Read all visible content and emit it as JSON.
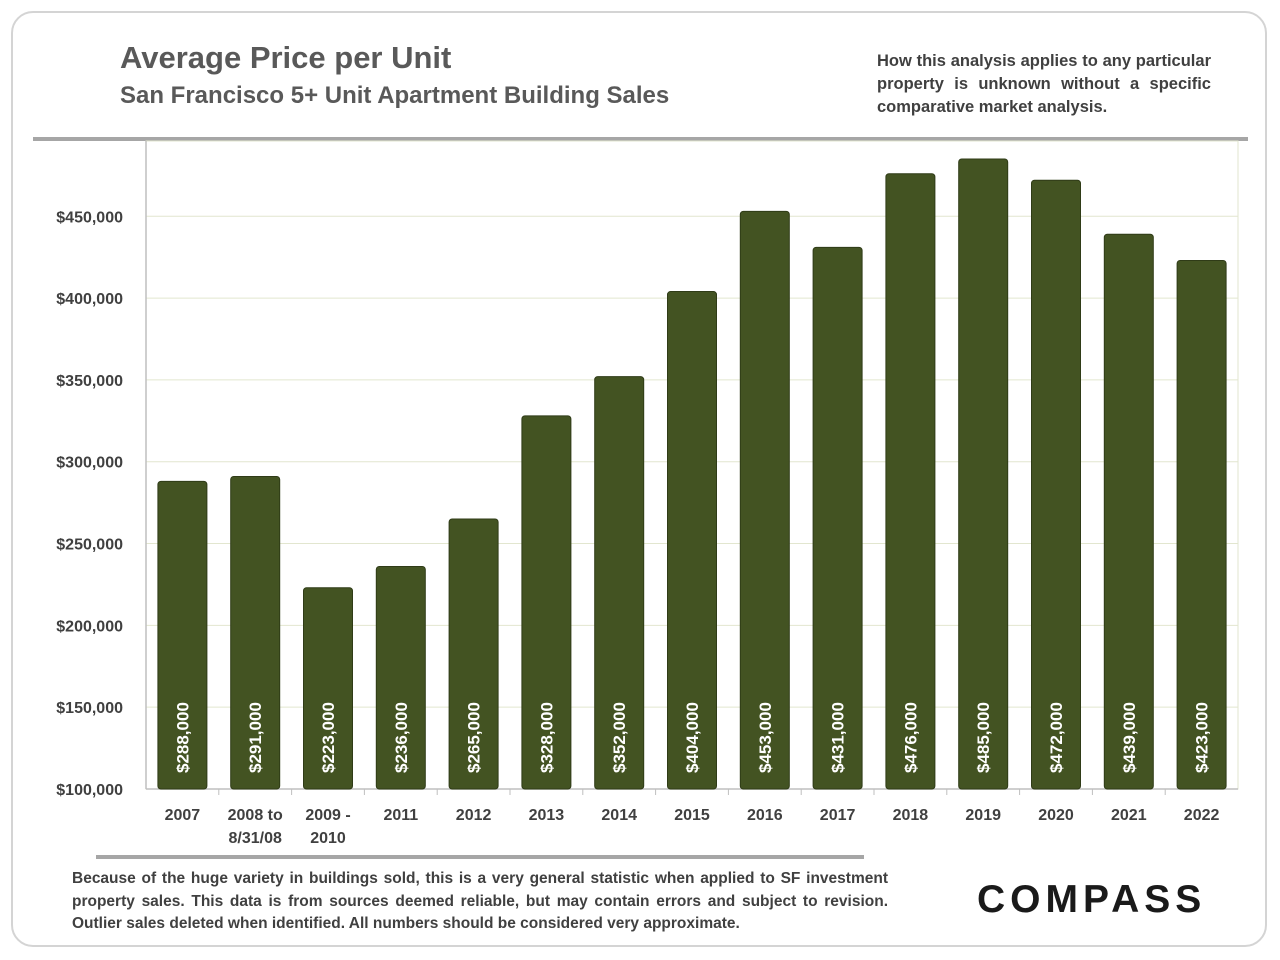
{
  "header": {
    "title": "Average Price per Unit",
    "subtitle": "San Francisco 5+ Unit Apartment Building Sales",
    "note": "How this analysis applies to any particular property is unknown without a specific comparative market analysis."
  },
  "footer": {
    "disclaimer": "Because of the huge variety in buildings sold, this is a very general statistic when applied to SF investment property sales. This data is from sources deemed reliable, but may contain errors and subject to revision. Outlier sales deleted when identified. All numbers should be considered very approximate.",
    "logo": "COMPASS"
  },
  "colors": {
    "bar": "#435322",
    "grid": "#e2e6cf",
    "text": "#404040"
  },
  "chart_data": {
    "type": "bar",
    "title": "Average Price per Unit",
    "subtitle": "San Francisco 5+ Unit Apartment Building Sales",
    "categories": [
      [
        "2007"
      ],
      [
        "2008 to",
        "8/31/08"
      ],
      [
        "2009 -",
        "2010"
      ],
      [
        "2011"
      ],
      [
        "2012"
      ],
      [
        "2013"
      ],
      [
        "2014"
      ],
      [
        "2015"
      ],
      [
        "2016"
      ],
      [
        "2017"
      ],
      [
        "2018"
      ],
      [
        "2019"
      ],
      [
        "2020"
      ],
      [
        "2021"
      ],
      [
        "2022"
      ]
    ],
    "values": [
      288000,
      291000,
      223000,
      236000,
      265000,
      328000,
      352000,
      404000,
      453000,
      431000,
      476000,
      485000,
      472000,
      439000,
      423000
    ],
    "data_labels": [
      "$288,000",
      "$291,000",
      "$223,000",
      "$236,000",
      "$265,000",
      "$328,000",
      "$352,000",
      "$404,000",
      "$453,000",
      "$431,000",
      "$476,000",
      "$485,000",
      "$472,000",
      "$439,000",
      "$423,000"
    ],
    "yticks": [
      100000,
      150000,
      200000,
      250000,
      300000,
      350000,
      400000,
      450000
    ],
    "ytick_labels": [
      "$100,000",
      "$150,000",
      "$200,000",
      "$250,000",
      "$300,000",
      "$350,000",
      "$400,000",
      "$450,000"
    ],
    "ylim": [
      100000,
      496000
    ],
    "xlabel": "",
    "ylabel": "",
    "grid": true,
    "data_label_placement": "inside-bottom-vertical"
  }
}
